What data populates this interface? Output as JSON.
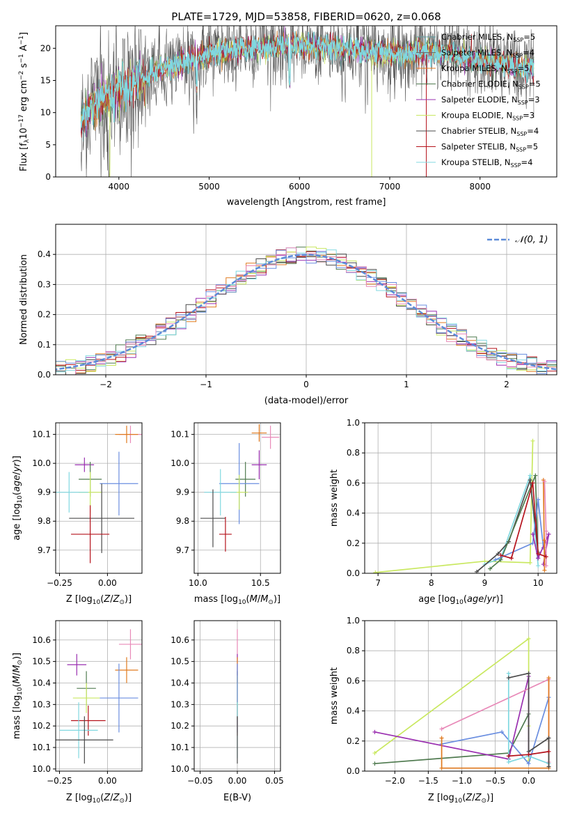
{
  "title": "PLATE=1729, MJD=53858, FIBERID=0620, z=0.068",
  "chart_data": [
    {
      "id": "spectrum",
      "type": "line",
      "xlabel": "wavelength [Angstrom, rest frame]",
      "ylabel": "Flux [f_λ10^-17 erg cm^-2 s^-1 A^-1]",
      "xlim": [
        3300,
        8850
      ],
      "ylim": [
        0,
        23.5
      ],
      "xticks": [
        4000,
        5000,
        6000,
        7000,
        8000
      ],
      "yticks": [
        0,
        5,
        10,
        15,
        20
      ],
      "grid": false,
      "legend_position": "right",
      "continuum": {
        "x": [
          3580,
          3700,
          3800,
          3900,
          4000,
          4100,
          4200,
          4300,
          4400,
          4600,
          4800,
          5000,
          5200,
          5400,
          5600,
          5800,
          6000,
          6200,
          6400,
          6600,
          6800,
          7000,
          7200,
          7400,
          7600,
          7800,
          8000,
          8200,
          8400,
          8600
        ],
        "y": [
          8.5,
          11,
          12,
          12.5,
          13.5,
          14.2,
          15,
          15.5,
          16.5,
          17.2,
          18.2,
          19,
          19.5,
          20,
          20.2,
          20.3,
          20.5,
          20.2,
          20,
          19.8,
          19.5,
          19.2,
          19.3,
          19.5,
          19.2,
          18.6,
          18.2,
          17.8,
          17.2,
          16.8
        ]
      },
      "series": [
        {
          "name": "Chabrier MILES, N_SSP=5",
          "color": "#5e9ca0"
        },
        {
          "name": "Salpeter MILES, N_SSP=4",
          "color": "#6a6a6a"
        },
        {
          "name": "Kroupa MILES, N_SSP=5",
          "color": "#e07a1f"
        },
        {
          "name": "Chabrier ELODIE, N_SSP=5",
          "color": "#4f7a4f"
        },
        {
          "name": "Salpeter ELODIE, N_SSP=3",
          "color": "#9a2fb0"
        },
        {
          "name": "Kroupa ELODIE, N_SSP=3",
          "color": "#c9e860"
        },
        {
          "name": "Chabrier STELIB, N_SSP=4",
          "color": "#4a4a4a"
        },
        {
          "name": "Salpeter STELIB, N_SSP=5",
          "color": "#b5121b"
        },
        {
          "name": "Kroupa STELIB, N_SSP=4",
          "color": "#80d8e0"
        }
      ]
    },
    {
      "id": "residuals",
      "type": "bar",
      "xlabel": "(data-model)/error",
      "ylabel": "Normed distribution",
      "xlim": [
        -2.5,
        2.5
      ],
      "ylim": [
        0,
        0.5
      ],
      "xticks": [
        -2,
        -1,
        0,
        1,
        2
      ],
      "yticks": [
        0.0,
        0.1,
        0.2,
        0.3,
        0.4
      ],
      "grid": true,
      "legend_position": "top-right",
      "legend": "N(0,1)",
      "histogram_colors": [
        "#e07a1f",
        "#9a2fb0",
        "#4f7a4f",
        "#c9e860",
        "#b5121b",
        "#4a4a4a",
        "#80d8e0",
        "#6a8ee0",
        "#e889b8"
      ]
    },
    {
      "id": "age-vs-Z",
      "type": "scatter",
      "xlabel": "Z [log10(Z/Z☉)]",
      "ylabel": "age  [log10(age/yr)]",
      "xlim": [
        -0.27,
        0.18
      ],
      "ylim": [
        9.62,
        10.14
      ],
      "xticks": [
        -0.25,
        0.0
      ],
      "yticks": [
        9.7,
        9.8,
        9.9,
        10.0,
        10.1
      ],
      "grid": true,
      "points": [
        {
          "x": 0.12,
          "y": 10.1,
          "xerr": 0.06,
          "yerr": 0.03,
          "color": "#e889b8"
        },
        {
          "x": 0.1,
          "y": 10.1,
          "xerr": 0.06,
          "yerr": 0.03,
          "color": "#e07a1f"
        },
        {
          "x": -0.12,
          "y": 9.995,
          "xerr": 0.05,
          "yerr": 0.025,
          "color": "#9a2fb0"
        },
        {
          "x": -0.09,
          "y": 9.945,
          "xerr": 0.06,
          "yerr": 0.06,
          "color": "#4f7a4f"
        },
        {
          "x": 0.06,
          "y": 9.93,
          "xerr": 0.1,
          "yerr": 0.11,
          "color": "#6a8ee0"
        },
        {
          "x": -0.09,
          "y": 9.9,
          "xerr": 0.06,
          "yerr": 0.07,
          "color": "#c9e860"
        },
        {
          "x": -0.2,
          "y": 9.9,
          "xerr": 0.1,
          "yerr": 0.07,
          "color": "#80d8e0"
        },
        {
          "x": -0.03,
          "y": 9.81,
          "xerr": 0.17,
          "yerr": 0.12,
          "color": "#4a4a4a"
        },
        {
          "x": -0.09,
          "y": 9.755,
          "xerr": 0.1,
          "yerr": 0.1,
          "color": "#b5121b"
        }
      ]
    },
    {
      "id": "age-vs-mass",
      "type": "scatter",
      "xlabel": "mass [log10(M/M☉)]",
      "ylabel": "",
      "xlim": [
        9.97,
        10.66
      ],
      "ylim": [
        9.62,
        10.14
      ],
      "xticks": [
        10.0,
        10.5
      ],
      "yticks": [
        9.7,
        9.8,
        9.9,
        10.0,
        10.1
      ],
      "grid": true,
      "points": [
        {
          "x": 10.58,
          "y": 10.09,
          "xerr": 0.07,
          "yerr": 0.04,
          "color": "#e889b8"
        },
        {
          "x": 10.49,
          "y": 10.105,
          "xerr": 0.06,
          "yerr": 0.03,
          "color": "#e07a1f"
        },
        {
          "x": 10.49,
          "y": 9.995,
          "xerr": 0.06,
          "yerr": 0.05,
          "color": "#9a2fb0"
        },
        {
          "x": 10.38,
          "y": 9.945,
          "xerr": 0.08,
          "yerr": 0.06,
          "color": "#4f7a4f"
        },
        {
          "x": 10.33,
          "y": 9.93,
          "xerr": 0.16,
          "yerr": 0.14,
          "color": "#6a8ee0"
        },
        {
          "x": 10.33,
          "y": 9.9,
          "xerr": 0.07,
          "yerr": 0.06,
          "color": "#c9e860"
        },
        {
          "x": 10.18,
          "y": 9.9,
          "xerr": 0.13,
          "yerr": 0.08,
          "color": "#80d8e0"
        },
        {
          "x": 10.12,
          "y": 9.81,
          "xerr": 0.1,
          "yerr": 0.1,
          "color": "#4a4a4a"
        },
        {
          "x": 10.22,
          "y": 9.755,
          "xerr": 0.05,
          "yerr": 0.06,
          "color": "#b5121b"
        }
      ]
    },
    {
      "id": "weight-vs-age",
      "type": "line",
      "xlabel": "age  [log10(age/yr)]",
      "ylabel": "mass weight",
      "xlim": [
        6.75,
        10.35
      ],
      "ylim": [
        0,
        1.0
      ],
      "xticks": [
        7,
        8,
        9,
        10
      ],
      "yticks": [
        0.0,
        0.2,
        0.4,
        0.6,
        0.8,
        1.0
      ],
      "grid": true,
      "series": [
        {
          "color": "#c9e860",
          "x": [
            6.95,
            9.0,
            9.85,
            9.9
          ],
          "y": [
            0.005,
            0.08,
            0.07,
            0.88
          ]
        },
        {
          "color": "#80d8e0",
          "x": [
            9.0,
            9.3,
            9.85,
            10.0
          ],
          "y": [
            0.06,
            0.1,
            0.65,
            0.05
          ]
        },
        {
          "color": "#4a4a4a",
          "x": [
            8.85,
            9.25,
            9.45,
            9.85,
            10.0
          ],
          "y": [
            0.01,
            0.13,
            0.21,
            0.62,
            0.14
          ]
        },
        {
          "color": "#4f7a4f",
          "x": [
            9.1,
            9.3,
            9.95,
            10.0
          ],
          "y": [
            0.03,
            0.09,
            0.65,
            0.1
          ]
        },
        {
          "color": "#6a8ee0",
          "x": [
            9.2,
            9.9,
            10.0,
            10.1
          ],
          "y": [
            0.09,
            0.2,
            0.49,
            0.17
          ]
        },
        {
          "color": "#9a2fb0",
          "x": [
            9.9,
            10.0,
            10.2,
            10.1
          ],
          "y": [
            0.26,
            0.1,
            0.26,
            0.06
          ]
        },
        {
          "color": "#e07a1f",
          "x": [
            10.1,
            10.12,
            10.12
          ],
          "y": [
            0.62,
            0.02,
            0.22
          ]
        },
        {
          "color": "#e889b8",
          "x": [
            10.12,
            10.15,
            10.15
          ],
          "y": [
            0.61,
            0.28,
            0.05
          ]
        },
        {
          "color": "#b5121b",
          "x": [
            9.3,
            9.5,
            9.9,
            10.0,
            10.15
          ],
          "y": [
            0.12,
            0.1,
            0.6,
            0.13,
            0.11
          ]
        }
      ]
    },
    {
      "id": "mass-vs-Z",
      "type": "scatter",
      "xlabel": "Z [log10(Z/Z☉)]",
      "ylabel": "mass [log10(M/M☉)]",
      "xlim": [
        -0.27,
        0.18
      ],
      "ylim": [
        9.99,
        10.69
      ],
      "xticks": [
        -0.25,
        0.0
      ],
      "yticks": [
        10.0,
        10.1,
        10.2,
        10.3,
        10.4,
        10.5,
        10.6
      ],
      "grid": true,
      "points": [
        {
          "x": 0.12,
          "y": 10.58,
          "xerr": 0.06,
          "yerr": 0.07,
          "color": "#e889b8"
        },
        {
          "x": -0.16,
          "y": 10.485,
          "xerr": 0.05,
          "yerr": 0.05,
          "color": "#9a2fb0"
        },
        {
          "x": 0.1,
          "y": 10.46,
          "xerr": 0.06,
          "yerr": 0.06,
          "color": "#e07a1f"
        },
        {
          "x": -0.11,
          "y": 10.375,
          "xerr": 0.05,
          "yerr": 0.08,
          "color": "#4f7a4f"
        },
        {
          "x": -0.11,
          "y": 10.33,
          "xerr": 0.07,
          "yerr": 0.07,
          "color": "#c9e860"
        },
        {
          "x": 0.06,
          "y": 10.33,
          "xerr": 0.1,
          "yerr": 0.16,
          "color": "#6a8ee0"
        },
        {
          "x": -0.1,
          "y": 10.225,
          "xerr": 0.09,
          "yerr": 0.07,
          "color": "#b5121b"
        },
        {
          "x": -0.15,
          "y": 10.18,
          "xerr": 0.1,
          "yerr": 0.13,
          "color": "#80d8e0"
        },
        {
          "x": -0.12,
          "y": 10.135,
          "xerr": 0.15,
          "yerr": 0.11,
          "color": "#4a4a4a"
        }
      ]
    },
    {
      "id": "mass-vs-ebv",
      "type": "scatter",
      "xlabel": "E(B-V)",
      "ylabel": "",
      "xlim": [
        -0.058,
        0.058
      ],
      "ylim": [
        9.99,
        10.69
      ],
      "xticks": [
        -0.05,
        0.0,
        0.05
      ],
      "yticks": [
        10.0,
        10.1,
        10.2,
        10.3,
        10.4,
        10.5,
        10.6
      ],
      "grid": true,
      "points": [
        {
          "x": 0.0,
          "y": 10.58,
          "xerr": 0,
          "yerr": 0.07,
          "color": "#e889b8"
        },
        {
          "x": 0.0,
          "y": 10.485,
          "xerr": 0,
          "yerr": 0.05,
          "color": "#9a2fb0"
        },
        {
          "x": 0.0,
          "y": 10.46,
          "xerr": 0,
          "yerr": 0.06,
          "color": "#e07a1f"
        },
        {
          "x": 0.0,
          "y": 10.375,
          "xerr": 0,
          "yerr": 0.08,
          "color": "#4f7a4f"
        },
        {
          "x": 0.0,
          "y": 10.33,
          "xerr": 0,
          "yerr": 0.1,
          "color": "#c9e860"
        },
        {
          "x": 0.0,
          "y": 10.33,
          "xerr": 0,
          "yerr": 0.16,
          "color": "#6a8ee0"
        },
        {
          "x": 0.0,
          "y": 10.225,
          "xerr": 0,
          "yerr": 0.07,
          "color": "#b5121b"
        },
        {
          "x": 0.0,
          "y": 10.18,
          "xerr": 0,
          "yerr": 0.13,
          "color": "#80d8e0"
        },
        {
          "x": 0.0,
          "y": 10.135,
          "xerr": 0,
          "yerr": 0.11,
          "color": "#4a4a4a"
        }
      ]
    },
    {
      "id": "weight-vs-Z",
      "type": "line",
      "xlabel": "Z [log10(Z/Z☉)]",
      "ylabel": "mass weight",
      "xlim": [
        -2.45,
        0.42
      ],
      "ylim": [
        0,
        1.0
      ],
      "xticks": [
        -2.0,
        -1.5,
        -1.0,
        -0.5,
        0.0
      ],
      "yticks": [
        0.0,
        0.2,
        0.4,
        0.6,
        0.8,
        1.0
      ],
      "grid": true,
      "series": [
        {
          "color": "#c9e860",
          "x": [
            -2.3,
            0.0,
            0.0,
            0.0
          ],
          "y": [
            0.12,
            0.88,
            0.07,
            0.3
          ]
        },
        {
          "color": "#4f7a4f",
          "x": [
            -2.3,
            -0.3,
            0.0,
            0.0
          ],
          "y": [
            0.05,
            0.12,
            0.38,
            0.1
          ]
        },
        {
          "color": "#9a2fb0",
          "x": [
            -2.3,
            -0.3,
            0.0,
            0.0
          ],
          "y": [
            0.26,
            0.08,
            0.63,
            0.1
          ]
        },
        {
          "color": "#6a8ee0",
          "x": [
            -1.3,
            -0.4,
            0.0,
            0.3
          ],
          "y": [
            0.18,
            0.26,
            0.05,
            0.49
          ]
        },
        {
          "color": "#e889b8",
          "x": [
            -1.3,
            0.3,
            0.3
          ],
          "y": [
            0.28,
            0.61,
            0.06
          ]
        },
        {
          "color": "#e07a1f",
          "x": [
            -1.3,
            -1.3,
            0.3,
            0.3
          ],
          "y": [
            0.22,
            0.02,
            0.02,
            0.62
          ]
        },
        {
          "color": "#80d8e0",
          "x": [
            -0.3,
            -0.3,
            0.0,
            0.3
          ],
          "y": [
            0.65,
            0.06,
            0.1,
            0.05
          ]
        },
        {
          "color": "#4a4a4a",
          "x": [
            -0.3,
            0.0,
            0.0,
            0.3,
            0.3
          ],
          "y": [
            0.62,
            0.65,
            0.13,
            0.22,
            0.03
          ]
        },
        {
          "color": "#b5121b",
          "x": [
            -0.3,
            0.0,
            0.3
          ],
          "y": [
            0.1,
            0.11,
            0.13
          ]
        }
      ]
    }
  ]
}
